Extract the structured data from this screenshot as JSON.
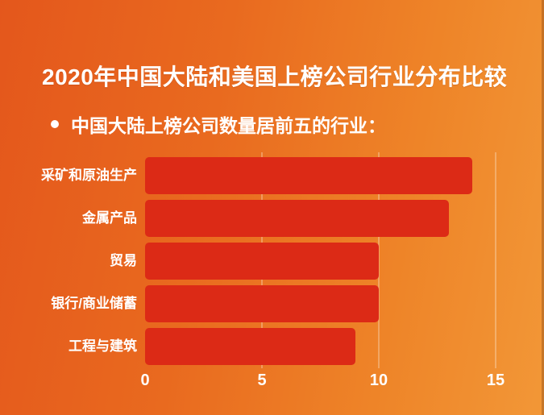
{
  "page": {
    "title": "2020年中国大陆和美国上榜公司行业分布比较",
    "subtitle": "中国大陆上榜公司数量居前五的行业："
  },
  "colors": {
    "bar": "#dc2a16",
    "bg_start": "#e4571c",
    "bg_mid1": "#e96a1f",
    "bg_mid2": "#ee8428",
    "bg_end": "#f29737",
    "text": "#ffffff",
    "gridline": "rgba(255,255,255,0.28)"
  },
  "chart_data": {
    "type": "bar",
    "orientation": "horizontal",
    "title": "2020年中国大陆和美国上榜公司行业分布比较",
    "subtitle": "中国大陆上榜公司数量居前五的行业：",
    "categories": [
      "采矿和原油生产",
      "金属产品",
      "贸易",
      "银行/商业储蓄",
      "工程与建筑"
    ],
    "values": [
      14,
      13,
      10,
      10,
      9
    ],
    "xlabel": "",
    "ylabel": "",
    "xlim": [
      0,
      15
    ],
    "xticks": [
      0,
      5,
      10,
      15
    ],
    "grid": "vertical-faint-under-bars",
    "legend": "none"
  }
}
